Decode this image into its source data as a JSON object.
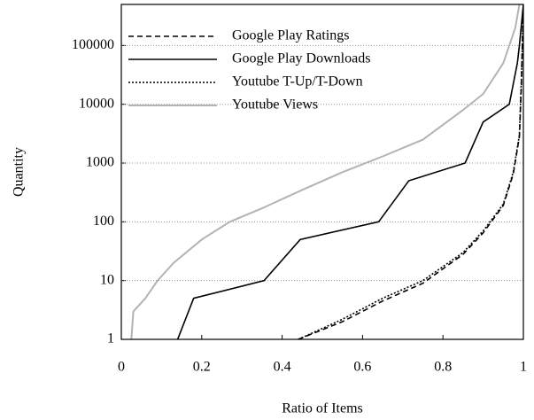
{
  "chart_data": {
    "type": "line",
    "xlabel": "Ratio of Items",
    "ylabel": "Quantity",
    "xlim": [
      0,
      1
    ],
    "xticks": [
      0,
      0.2,
      0.4,
      0.6,
      0.8,
      1
    ],
    "ylim": [
      1,
      500000
    ],
    "yticks": [
      1,
      10,
      100,
      1000,
      10000,
      100000
    ],
    "log_y": true,
    "grid": true,
    "legend": "upper left",
    "series": [
      {
        "name": "Google Play Ratings",
        "color": "#000000",
        "dash": "dashed",
        "x": [
          0.44,
          0.55,
          0.65,
          0.75,
          0.85,
          0.9,
          0.95,
          0.975,
          0.99,
          0.995,
          1
        ],
        "values": [
          1,
          2,
          4.5,
          9,
          28,
          65,
          190,
          650,
          2800,
          20000,
          500000
        ]
      },
      {
        "name": "Google Play Downloads",
        "color": "#000000",
        "dash": "solid",
        "x": [
          0.14,
          0.18,
          0.355,
          0.445,
          0.64,
          0.715,
          0.855,
          0.9,
          0.965,
          0.985,
          0.99,
          1
        ],
        "values": [
          1,
          5,
          10,
          50,
          100,
          500,
          1000,
          5000,
          10000,
          50000,
          100000,
          500000
        ]
      },
      {
        "name": "Youtube T-Up/T-Down",
        "color": "#000000",
        "dash": "dotted",
        "x": [
          0.44,
          0.55,
          0.65,
          0.75,
          0.85,
          0.9,
          0.95,
          0.975,
          0.99,
          0.995,
          1
        ],
        "values": [
          1,
          2.2,
          5,
          10,
          30,
          70,
          200,
          700,
          3000,
          25000,
          500000
        ]
      },
      {
        "name": "Youtube Views",
        "color": "#b3b3b3",
        "dash": "solid",
        "x": [
          0.025,
          0.03,
          0.06,
          0.09,
          0.13,
          0.2,
          0.27,
          0.35,
          0.45,
          0.55,
          0.65,
          0.75,
          0.85,
          0.9,
          0.95,
          0.98,
          0.99
        ],
        "values": [
          1,
          3,
          5,
          10,
          20,
          50,
          100,
          170,
          350,
          700,
          1300,
          2500,
          8000,
          15000,
          50000,
          200000,
          500000
        ]
      }
    ]
  }
}
